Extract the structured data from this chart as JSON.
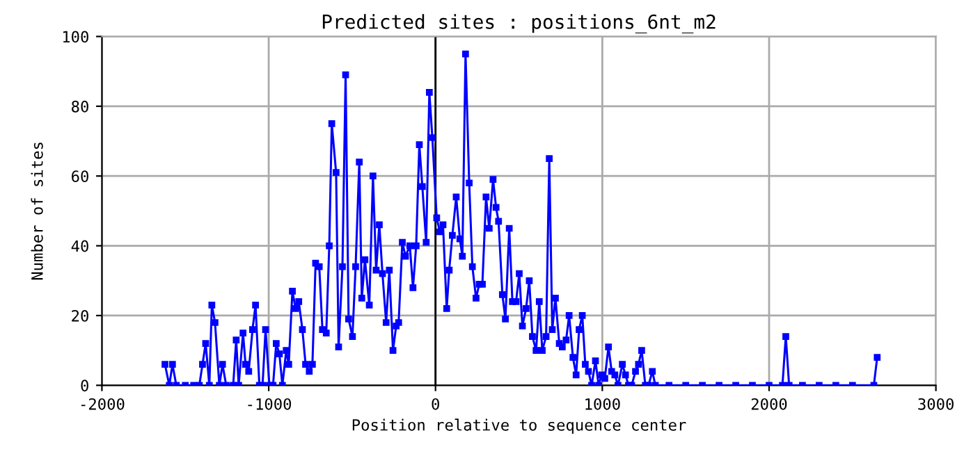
{
  "chart_data": {
    "type": "line",
    "title": "Predicted sites : positions_6nt_m2",
    "xlabel": "Position relative to sequence center",
    "ylabel": "Number of sites",
    "xlim": [
      -2000,
      3000
    ],
    "ylim": [
      0,
      100
    ],
    "xticks": [
      -2000,
      -1000,
      0,
      1000,
      2000,
      3000
    ],
    "yticks": [
      0,
      20,
      40,
      60,
      80,
      100
    ],
    "grid": true,
    "marker": "square",
    "line_style": "solid",
    "ref_lines": [
      {
        "axis": "x",
        "value": 0,
        "color": "#000000"
      }
    ],
    "series": [
      {
        "color": "#0000ff",
        "x": [
          -1622,
          -1596,
          -1577,
          -1554,
          -1500,
          -1450,
          -1416,
          -1397,
          -1378,
          -1356,
          -1341,
          -1322,
          -1296,
          -1277,
          -1255,
          -1213,
          -1195,
          -1180,
          -1154,
          -1139,
          -1120,
          -1097,
          -1079,
          -1056,
          -1037,
          -1019,
          -996,
          -974,
          -955,
          -936,
          -918,
          -895,
          -880,
          -858,
          -839,
          -820,
          -798,
          -779,
          -757,
          -738,
          -719,
          -697,
          -678,
          -655,
          -637,
          -622,
          -596,
          -581,
          -558,
          -539,
          -521,
          -498,
          -479,
          -457,
          -442,
          -423,
          -397,
          -375,
          -356,
          -337,
          -318,
          -296,
          -277,
          -255,
          -236,
          -221,
          -199,
          -180,
          -154,
          -135,
          -116,
          -97,
          -79,
          -56,
          -37,
          -19,
          7,
          26,
          45,
          67,
          82,
          101,
          124,
          146,
          161,
          180,
          202,
          221,
          243,
          262,
          281,
          303,
          322,
          345,
          363,
          378,
          401,
          419,
          442,
          461,
          483,
          502,
          521,
          543,
          562,
          581,
          603,
          622,
          640,
          663,
          682,
          700,
          719,
          742,
          760,
          783,
          801,
          824,
          843,
          861,
          880,
          898,
          917,
          936,
          959,
          978,
          996,
          1015,
          1037,
          1056,
          1075,
          1094,
          1120,
          1139,
          1157,
          1176,
          1199,
          1217,
          1236,
          1258,
          1277,
          1300,
          1318,
          1400,
          1500,
          1600,
          1700,
          1800,
          1900,
          2000,
          2080,
          2100,
          2120,
          2200,
          2300,
          2400,
          2500,
          2628,
          2648
        ],
        "values": [
          6,
          0,
          6,
          0,
          0,
          0,
          0,
          6,
          12,
          0,
          23,
          18,
          0,
          6,
          0,
          0,
          13,
          0,
          15,
          6,
          4,
          16,
          23,
          0,
          0,
          16,
          0,
          0,
          12,
          9,
          0,
          10,
          6,
          27,
          22,
          24,
          16,
          6,
          4,
          6,
          35,
          34,
          16,
          15,
          40,
          75,
          61,
          11,
          34,
          89,
          19,
          14,
          34,
          64,
          25,
          36,
          23,
          60,
          33,
          46,
          32,
          18,
          33,
          10,
          17,
          18,
          41,
          37,
          40,
          28,
          40,
          69,
          57,
          41,
          84,
          71,
          48,
          44,
          46,
          22,
          33,
          43,
          54,
          42,
          37,
          95,
          58,
          34,
          25,
          29,
          29,
          54,
          45,
          59,
          51,
          47,
          26,
          19,
          45,
          24,
          24,
          32,
          17,
          22,
          30,
          14,
          10,
          24,
          10,
          14,
          65,
          16,
          25,
          12,
          11,
          13,
          20,
          8,
          3,
          16,
          20,
          6,
          4,
          0,
          7,
          0,
          3,
          2,
          11,
          4,
          3,
          0,
          6,
          3,
          0,
          0,
          4,
          6,
          10,
          0,
          0,
          4,
          0,
          0,
          0,
          0,
          0,
          0,
          0,
          0,
          0,
          14,
          0,
          0,
          0,
          0,
          0,
          0,
          8
        ]
      }
    ]
  }
}
